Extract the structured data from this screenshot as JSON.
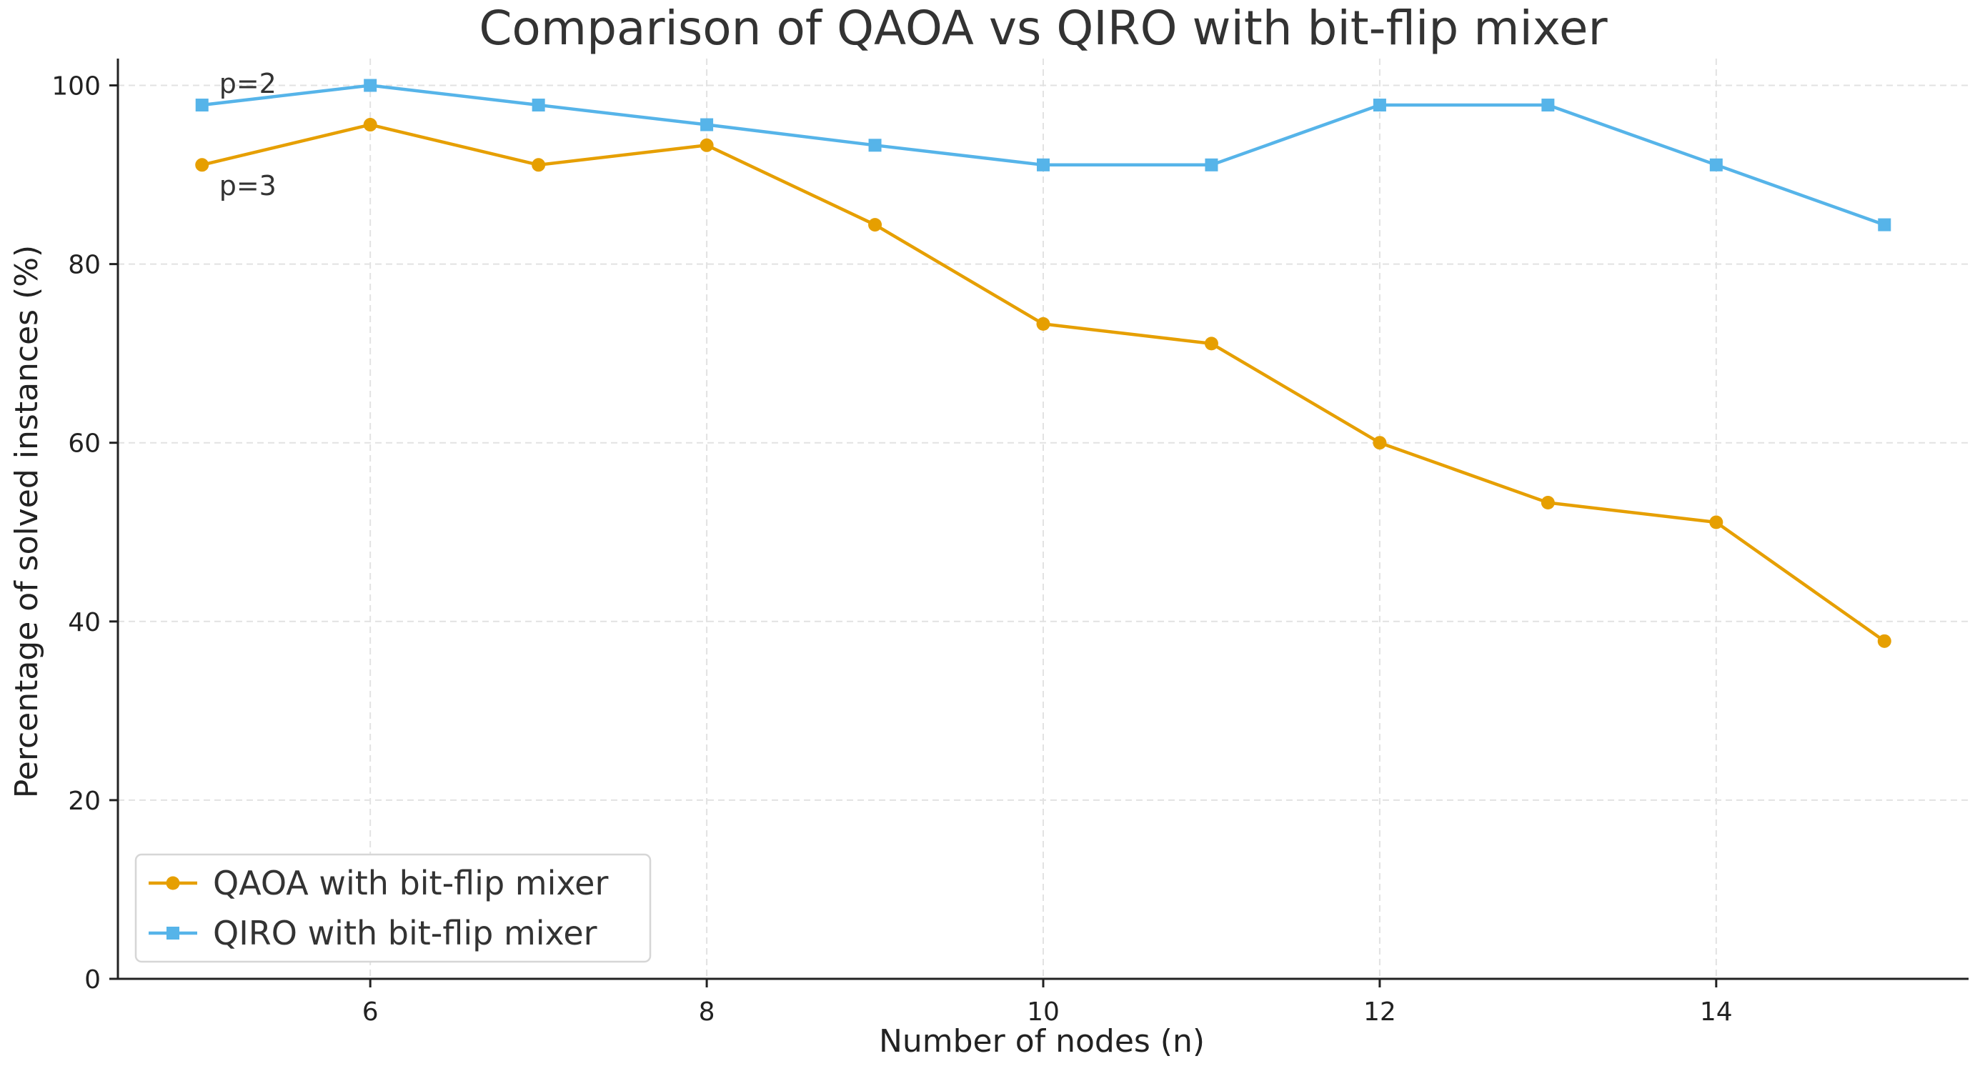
{
  "chart_data": {
    "type": "line",
    "title": "Comparison of QAOA vs QIRO with bit-flip mixer",
    "xlabel": "Number of nodes (n)",
    "ylabel": "Percentage of solved instances (%)",
    "xlim": [
      4.5,
      15.5
    ],
    "ylim": [
      0,
      103
    ],
    "xticks": [
      6,
      8,
      10,
      12,
      14
    ],
    "yticks": [
      0,
      20,
      40,
      60,
      80,
      100
    ],
    "grid": true,
    "legend_position": "lower-left",
    "x": [
      5,
      6,
      7,
      8,
      9,
      10,
      11,
      12,
      13,
      14,
      15
    ],
    "series": [
      {
        "name": "QAOA with bit-flip mixer",
        "color": "#E69F00",
        "marker": "circle",
        "values": [
          91.1,
          95.6,
          91.1,
          93.3,
          84.4,
          73.3,
          71.1,
          60.0,
          53.3,
          51.1,
          37.8
        ]
      },
      {
        "name": "QIRO with bit-flip mixer",
        "color": "#56B4E9",
        "marker": "square",
        "values": [
          97.8,
          100.0,
          97.8,
          95.6,
          93.3,
          91.1,
          91.1,
          97.8,
          97.8,
          91.1,
          84.4
        ]
      }
    ],
    "annotations": [
      {
        "text": "p=2",
        "x": 5,
        "y": 97.8,
        "placement": "above-right"
      },
      {
        "text": "p=3",
        "x": 5,
        "y": 91.1,
        "placement": "below-right"
      }
    ]
  }
}
